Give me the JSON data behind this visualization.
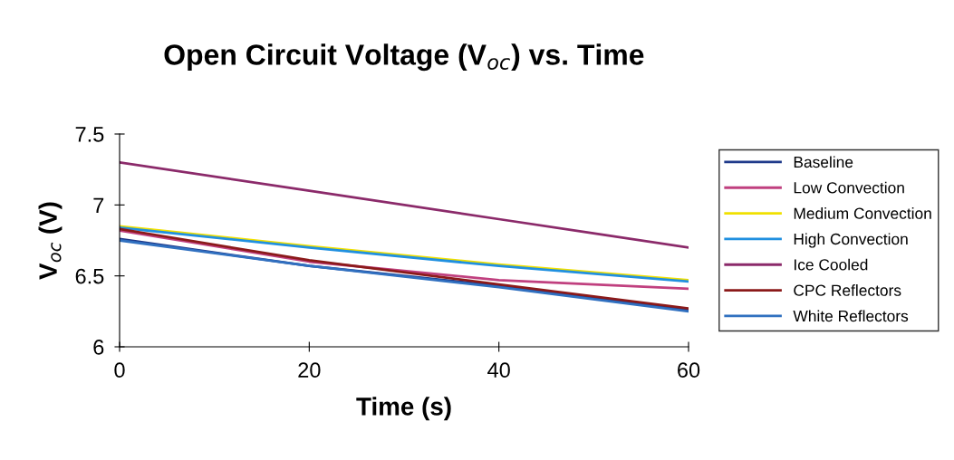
{
  "chart_data": {
    "type": "line",
    "title": "Open Circuit Voltage (V$_{oc}$) vs. Time",
    "xlabel": "Time (s)",
    "ylabel": "V$_{oc}$ (V)",
    "x": [
      0,
      20,
      40,
      60
    ],
    "series": [
      {
        "name": "Baseline",
        "color": "#1f3a8a",
        "values": [
          6.76,
          6.57,
          6.43,
          6.26
        ]
      },
      {
        "name": "Low Convection",
        "color": "#c0407f",
        "values": [
          6.82,
          6.6,
          6.47,
          6.41
        ]
      },
      {
        "name": "Medium Convection",
        "color": "#f0e000",
        "values": [
          6.85,
          6.71,
          6.58,
          6.47
        ]
      },
      {
        "name": "High Convection",
        "color": "#2090e0",
        "values": [
          6.84,
          6.7,
          6.57,
          6.46
        ]
      },
      {
        "name": "Ice Cooled",
        "color": "#8b2a6a",
        "values": [
          7.3,
          7.1,
          6.9,
          6.7
        ]
      },
      {
        "name": "CPC Reflectors",
        "color": "#8b1a1a",
        "values": [
          6.83,
          6.61,
          6.44,
          6.27
        ]
      },
      {
        "name": "White Reflectors",
        "color": "#3070c0",
        "values": [
          6.75,
          6.57,
          6.42,
          6.25
        ]
      }
    ],
    "xlim": [
      0,
      60
    ],
    "xticks": [
      0,
      20,
      40,
      60
    ],
    "ylim": [
      6,
      7.5
    ],
    "yticks": [
      6,
      6.5,
      7,
      7.5
    ],
    "grid": false,
    "legend": "right",
    "marker": "none",
    "line_style": "solid"
  }
}
